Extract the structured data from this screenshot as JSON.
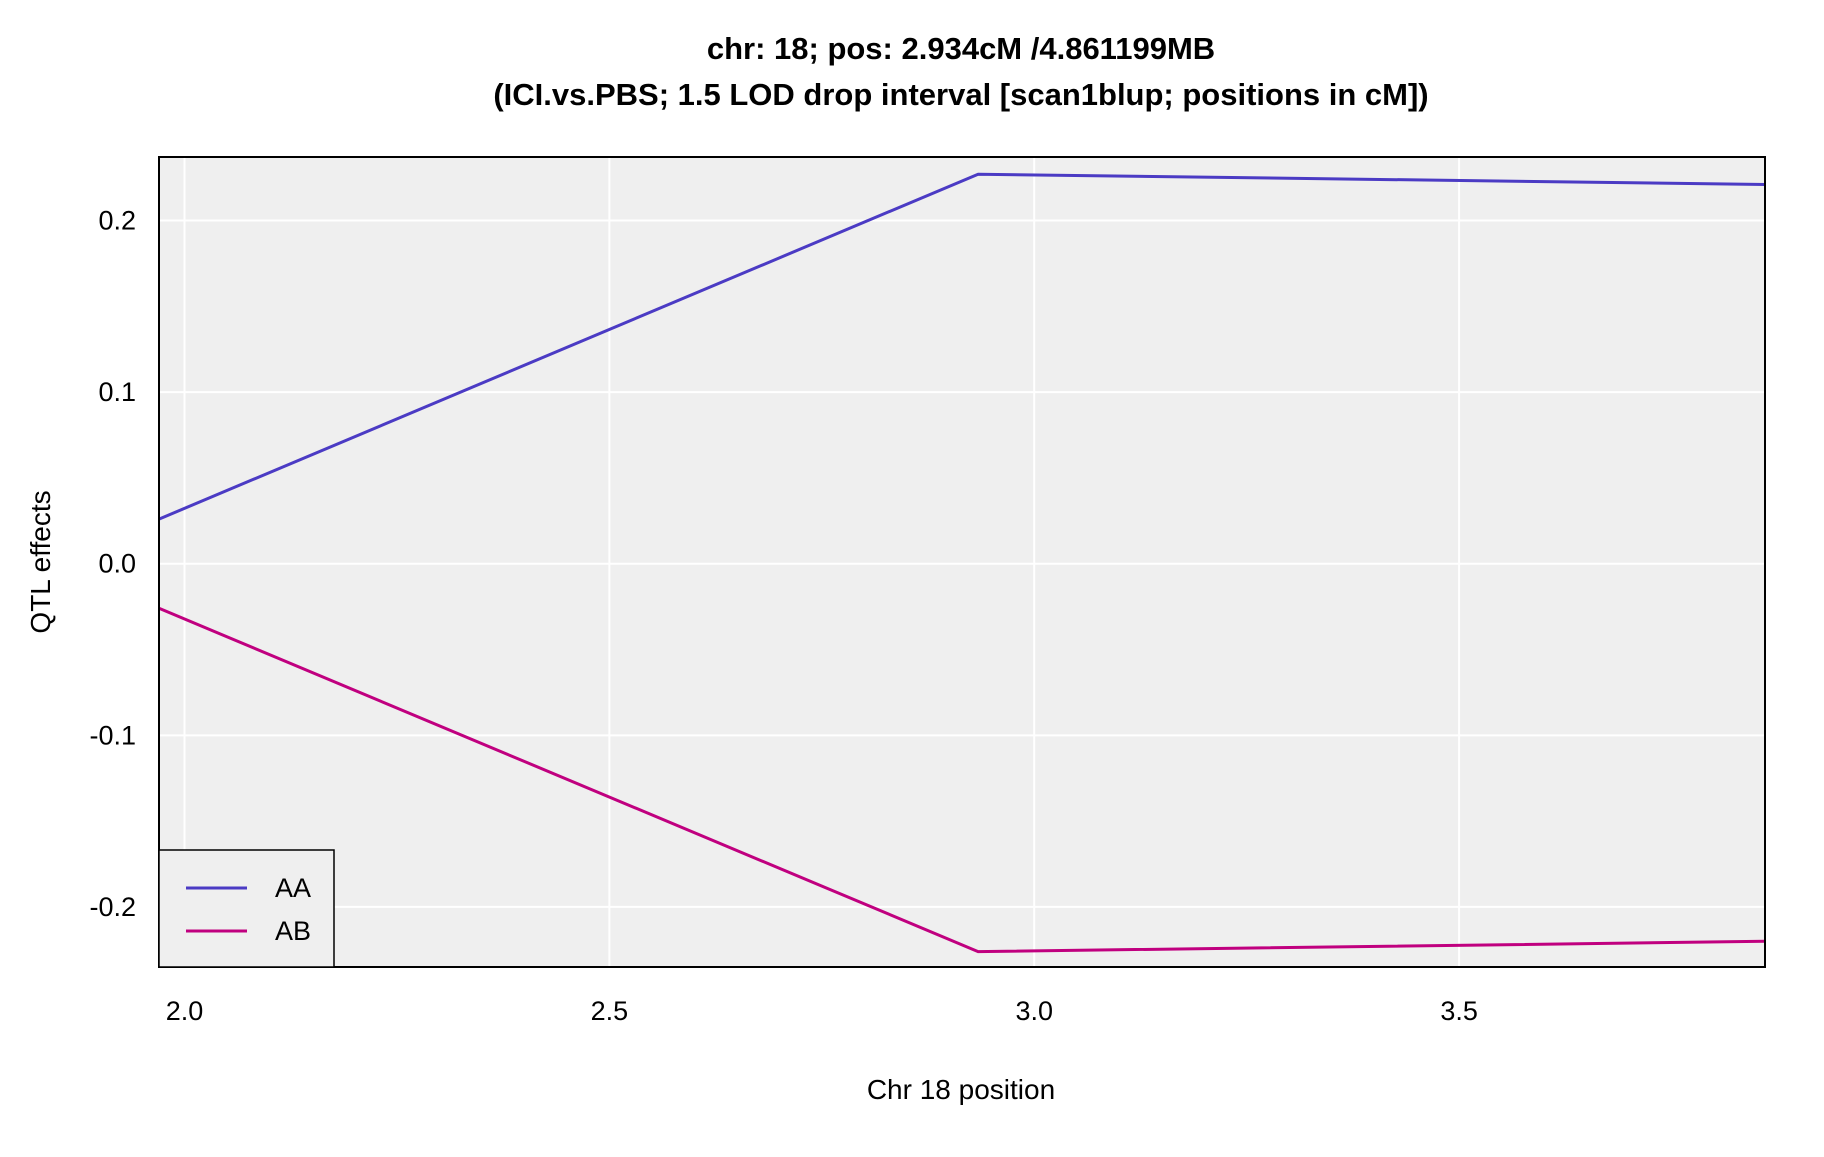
{
  "chart_data": {
    "type": "line",
    "title": "chr: 18; pos: 2.934cM /4.861199MB",
    "subtitle": "(ICI.vs.PBS; 1.5 LOD drop interval [scan1blup; positions in cM])",
    "xlabel": "Chr 18 position",
    "ylabel": "QTL effects",
    "xlim": [
      1.97,
      3.86
    ],
    "ylim": [
      -0.235,
      0.237
    ],
    "x_ticks": [
      2.0,
      2.5,
      3.0,
      3.5
    ],
    "x_tick_labels": [
      "2.0",
      "2.5",
      "3.0",
      "3.5"
    ],
    "y_ticks": [
      -0.2,
      -0.1,
      0.0,
      0.1,
      0.2
    ],
    "y_tick_labels": [
      "-0.2",
      "-0.1",
      "0.0",
      "0.1",
      "0.2"
    ],
    "grid": true,
    "legend_position": "bottom-left",
    "colors": {
      "panel_background": "#efefef",
      "grid": "#ffffff",
      "border": "#000000"
    },
    "series": [
      {
        "name": "AA",
        "color": "#4b3bc4",
        "x": [
          1.97,
          2.934,
          3.86
        ],
        "y": [
          0.026,
          0.227,
          0.221
        ]
      },
      {
        "name": "AB",
        "color": "#c0007f",
        "x": [
          1.97,
          2.934,
          3.86
        ],
        "y": [
          -0.026,
          -0.226,
          -0.22
        ]
      }
    ]
  }
}
